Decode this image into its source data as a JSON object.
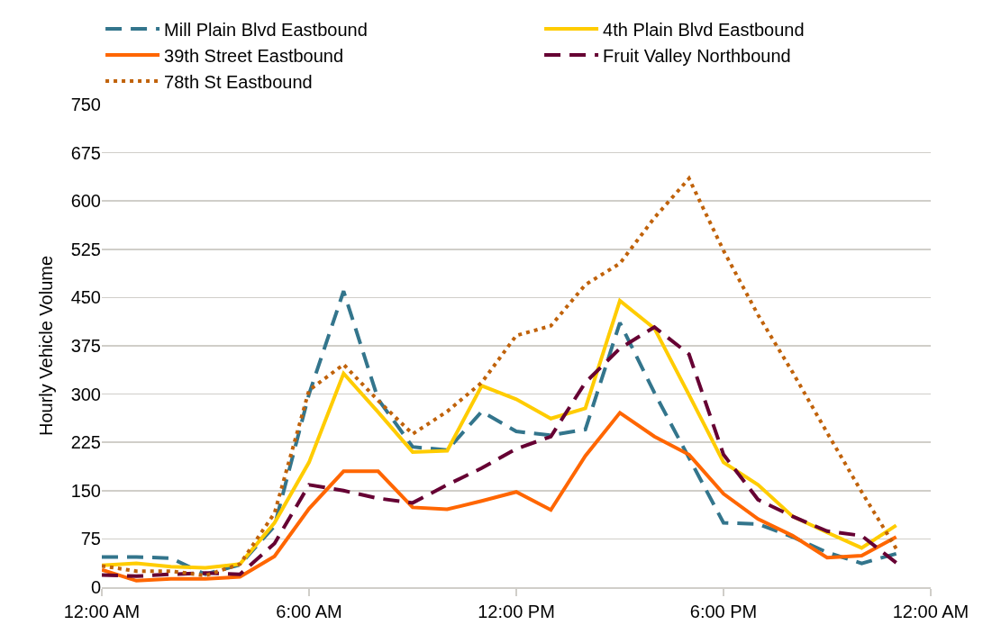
{
  "chart_data": {
    "type": "line",
    "ylabel": "Hourly Vehicle Volume",
    "x": [
      0,
      1,
      2,
      3,
      4,
      5,
      6,
      7,
      8,
      9,
      10,
      11,
      12,
      13,
      14,
      15,
      16,
      17,
      18,
      19,
      20,
      21,
      22,
      23
    ],
    "xlim": [
      0,
      24
    ],
    "xticks": [
      {
        "value": 0,
        "label": "12:00 AM"
      },
      {
        "value": 6,
        "label": "6:00 AM"
      },
      {
        "value": 12,
        "label": "12:00 PM"
      },
      {
        "value": 18,
        "label": "6:00 PM"
      },
      {
        "value": 24,
        "label": "12:00 AM"
      }
    ],
    "ylim": [
      0,
      750
    ],
    "yticks": [
      0,
      75,
      150,
      225,
      300,
      375,
      450,
      525,
      600,
      675,
      750
    ],
    "grid": "y",
    "legend": "top",
    "series": [
      {
        "name": "Mill Plain Blvd Eastbound",
        "color": "#33758c",
        "line_style": "dashed",
        "values": [
          47,
          47,
          45,
          20,
          35,
          95,
          300,
          460,
          292,
          218,
          213,
          273,
          242,
          236,
          245,
          411,
          302,
          201,
          100,
          98,
          78,
          54,
          37,
          52
        ]
      },
      {
        "name": "4th Plain Blvd Eastbound",
        "color": "#ffcc00",
        "line_style": "solid",
        "values": [
          34,
          37,
          32,
          30,
          36,
          100,
          194,
          332,
          272,
          210,
          212,
          313,
          292,
          262,
          278,
          445,
          402,
          299,
          194,
          159,
          110,
          85,
          61,
          96
        ]
      },
      {
        "name": "39th Street Eastbound",
        "color": "#ff6600",
        "line_style": "solid",
        "values": [
          27,
          10,
          13,
          13,
          16,
          48,
          122,
          180,
          180,
          124,
          121,
          134,
          148,
          120,
          204,
          271,
          234,
          206,
          145,
          106,
          80,
          46,
          49,
          78
        ]
      },
      {
        "name": "Fruit Valley Northbound",
        "color": "#660033",
        "line_style": "dashed",
        "values": [
          19,
          17,
          20,
          22,
          20,
          68,
          159,
          150,
          138,
          131,
          159,
          185,
          215,
          234,
          318,
          371,
          404,
          362,
          206,
          136,
          110,
          87,
          80,
          38
        ]
      },
      {
        "name": "78th St Eastbound",
        "color": "#c0620a",
        "line_style": "dotted",
        "values": [
          33,
          25,
          25,
          18,
          36,
          115,
          306,
          346,
          290,
          238,
          273,
          318,
          391,
          406,
          470,
          503,
          574,
          635,
          523,
          423,
          334,
          240,
          148,
          60
        ]
      }
    ]
  }
}
